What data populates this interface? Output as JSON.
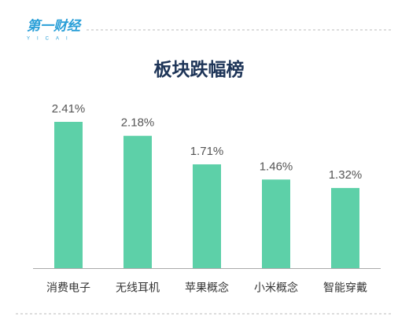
{
  "logo": {
    "text": "第一财经",
    "subtext": "YICAI"
  },
  "chart_data": {
    "type": "bar",
    "title": "板块跌幅榜",
    "categories": [
      "消费电子",
      "无线耳机",
      "苹果概念",
      "小米概念",
      "智能穿戴"
    ],
    "values": [
      2.41,
      2.18,
      1.71,
      1.46,
      1.32
    ],
    "value_labels": [
      "2.41%",
      "2.18%",
      "1.71%",
      "1.46%",
      "1.32%"
    ],
    "color": "#5dd0a8"
  }
}
